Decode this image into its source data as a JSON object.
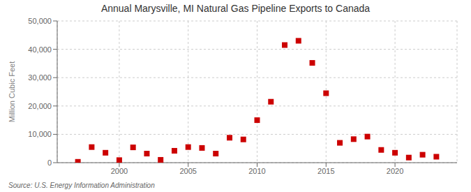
{
  "chart_data": {
    "type": "scatter",
    "title": "Annual Marysville, MI Natural Gas Pipeline Exports to Canada",
    "ylabel": "Million Cubic Feet",
    "annotations": [
      "Source: U.S. Energy Information Administration"
    ],
    "x": [
      1997,
      1998,
      1999,
      2000,
      2001,
      2002,
      2003,
      2004,
      2005,
      2006,
      2007,
      2008,
      2009,
      2010,
      2011,
      2012,
      2013,
      2014,
      2015,
      2016,
      2017,
      2018,
      2019,
      2020,
      2021,
      2022,
      2023
    ],
    "values": [
      300,
      5500,
      3500,
      900,
      5400,
      3200,
      1000,
      4200,
      5500,
      5200,
      3200,
      8800,
      8200,
      15000,
      21500,
      41500,
      43000,
      35200,
      24500,
      7000,
      8300,
      9200,
      4500,
      3500,
      1800,
      2800,
      2100
    ],
    "color": "#cc0000",
    "marker": "square",
    "xlim": [
      1995.5,
      2024.5
    ],
    "xticks": [
      2000,
      2005,
      2010,
      2015,
      2020
    ],
    "ylim": [
      0,
      50000
    ],
    "yticks": [
      0,
      {
        "value": 10000,
        "label": "10,000"
      },
      {
        "value": 20000,
        "label": "20,000"
      },
      {
        "value": 30000,
        "label": "30,000"
      },
      {
        "value": 40000,
        "label": "40,000"
      },
      {
        "value": 50000,
        "label": "50,000"
      }
    ],
    "grid": true
  }
}
